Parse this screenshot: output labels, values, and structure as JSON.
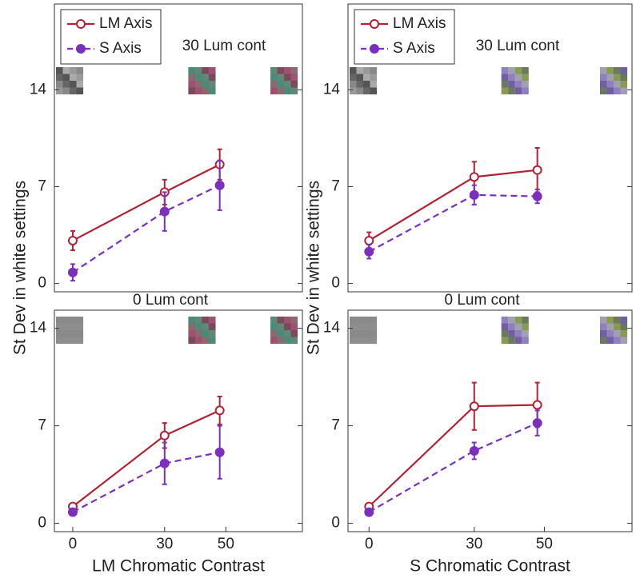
{
  "chart_data": [
    {
      "type": "line",
      "annotation": "30 Lum cont",
      "ylabel": "St Dev in white settings",
      "legend": "upper left",
      "x": [
        0,
        30,
        48
      ],
      "xlim": [
        -6,
        75
      ],
      "ylim": [
        -0.6,
        20.2
      ],
      "yticks": [
        0,
        7,
        14
      ],
      "series": [
        {
          "name": "LM Axis",
          "color": "#b22234",
          "marker": "open",
          "linestyle": "solid",
          "values": [
            3.1,
            6.6,
            8.6
          ],
          "errors": [
            0.7,
            0.9,
            1.1
          ]
        },
        {
          "name": "S Axis",
          "color": "#7b2fbe",
          "marker": "filled",
          "linestyle": "dashed",
          "values": [
            0.8,
            5.2,
            7.1
          ],
          "errors": [
            0.6,
            1.4,
            1.8
          ]
        }
      ]
    },
    {
      "type": "line",
      "annotation": "30 Lum cont",
      "ylabel": "St Dev in white settings",
      "legend": "upper left",
      "x": [
        0,
        30,
        48
      ],
      "xlim": [
        -6,
        75
      ],
      "ylim": [
        -0.6,
        20.2
      ],
      "yticks": [
        0,
        7,
        14
      ],
      "series": [
        {
          "name": "LM Axis",
          "color": "#b22234",
          "marker": "open",
          "linestyle": "solid",
          "values": [
            3.1,
            7.7,
            8.2
          ],
          "errors": [
            0.6,
            1.1,
            1.6
          ]
        },
        {
          "name": "S Axis",
          "color": "#7b2fbe",
          "marker": "filled",
          "linestyle": "dashed",
          "values": [
            2.3,
            6.4,
            6.3
          ],
          "errors": [
            0.5,
            0.7,
            0.5
          ]
        }
      ]
    },
    {
      "type": "line",
      "title": "0 Lum cont",
      "xlabel": "LM Chromatic Contrast",
      "x": [
        0,
        30,
        48
      ],
      "xlim": [
        -6,
        75
      ],
      "xticks": [
        0,
        30,
        50
      ],
      "ylim": [
        -0.6,
        15.3
      ],
      "yticks": [
        0,
        7,
        14
      ],
      "series": [
        {
          "color": "#b22234",
          "marker": "open",
          "linestyle": "solid",
          "values": [
            1.2,
            6.3,
            8.1
          ],
          "errors": [
            0.2,
            0.9,
            1.0
          ]
        },
        {
          "color": "#7b2fbe",
          "marker": "filled",
          "linestyle": "dashed",
          "values": [
            0.8,
            4.3,
            5.1
          ],
          "errors": [
            0.2,
            1.5,
            1.9
          ]
        }
      ]
    },
    {
      "type": "line",
      "title": "0 Lum cont",
      "xlabel": "S Chromatic Contrast",
      "x": [
        0,
        30,
        48
      ],
      "xlim": [
        -6,
        75
      ],
      "xticks": [
        0,
        30,
        50
      ],
      "ylim": [
        -0.6,
        15.3
      ],
      "yticks": [
        0,
        7,
        14
      ],
      "series": [
        {
          "color": "#b22234",
          "marker": "open",
          "linestyle": "solid",
          "values": [
            1.2,
            8.4,
            8.5
          ],
          "errors": [
            0.2,
            1.7,
            1.6
          ]
        },
        {
          "color": "#7b2fbe",
          "marker": "filled",
          "linestyle": "dashed",
          "values": [
            0.8,
            5.2,
            7.2
          ],
          "errors": [
            0.1,
            0.6,
            0.9
          ]
        }
      ]
    }
  ]
}
